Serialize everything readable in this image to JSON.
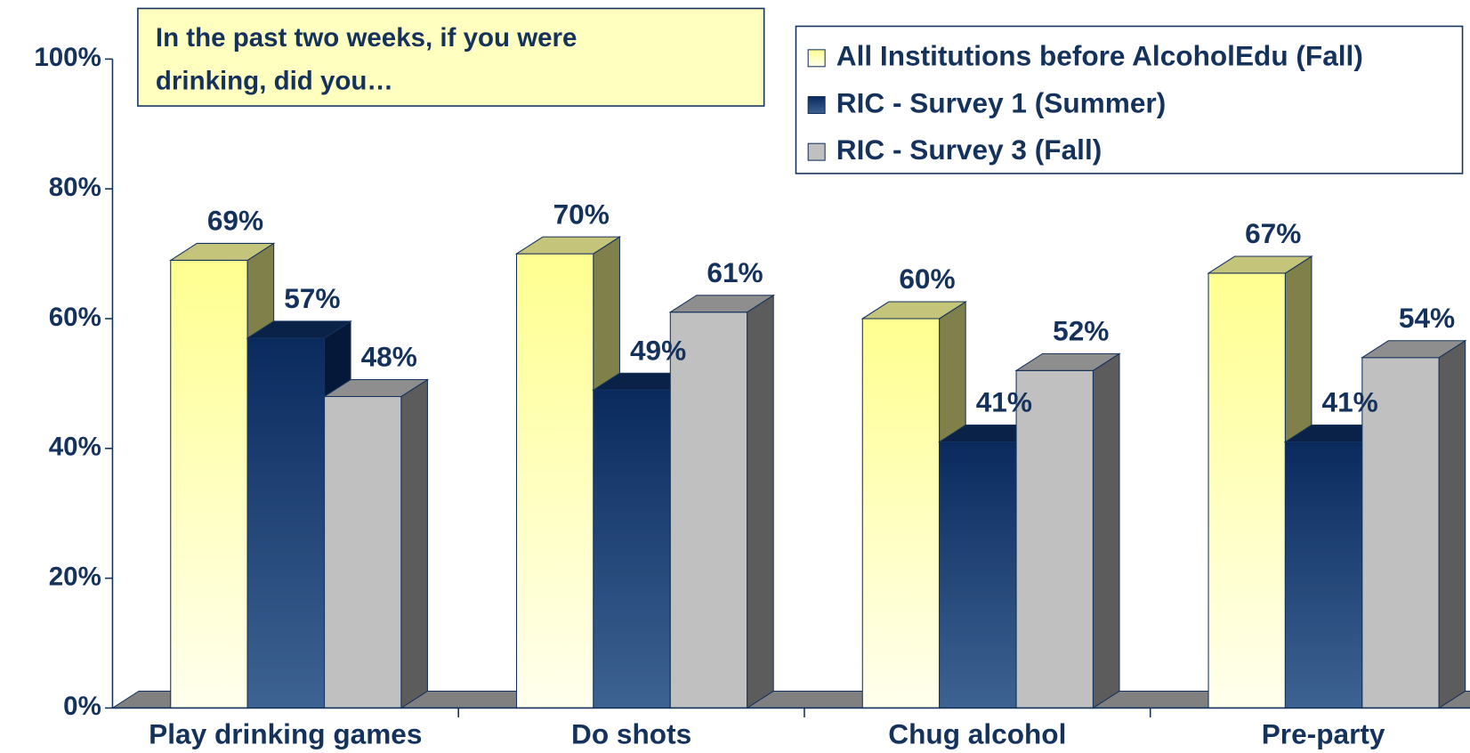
{
  "chart_data": {
    "type": "bar3d",
    "annotation": [
      "In the past two weeks, if you were",
      "drinking, did you…"
    ],
    "categories": [
      "Play drinking games",
      "Do shots",
      "Chug alcohol",
      "Pre-party"
    ],
    "series": [
      {
        "name": "All Institutions before AlcoholEdu (Fall)",
        "color": "#ffff99",
        "values": [
          69,
          70,
          60,
          67
        ],
        "value_labels": [
          "69%",
          "70%",
          "60%",
          "67%"
        ]
      },
      {
        "name": "RIC - Survey 1 (Summer)",
        "color": "#0a2a5e",
        "values": [
          57,
          49,
          41,
          41
        ],
        "value_labels": [
          "57%",
          "49%",
          "41%",
          "41%"
        ]
      },
      {
        "name": "RIC - Survey 3 (Fall)",
        "color": "#c0c0c0",
        "values": [
          48,
          61,
          52,
          54
        ],
        "value_labels": [
          "48%",
          "61%",
          "52%",
          "54%"
        ]
      }
    ],
    "ylim": [
      0,
      100
    ],
    "yticks": [
      {
        "value": 0,
        "label": "0%"
      },
      {
        "value": 20,
        "label": "20%"
      },
      {
        "value": 40,
        "label": "40%"
      },
      {
        "value": 60,
        "label": "60%"
      },
      {
        "value": 80,
        "label": "80%"
      },
      {
        "value": 100,
        "label": "100%"
      }
    ],
    "legend": "top-right"
  }
}
